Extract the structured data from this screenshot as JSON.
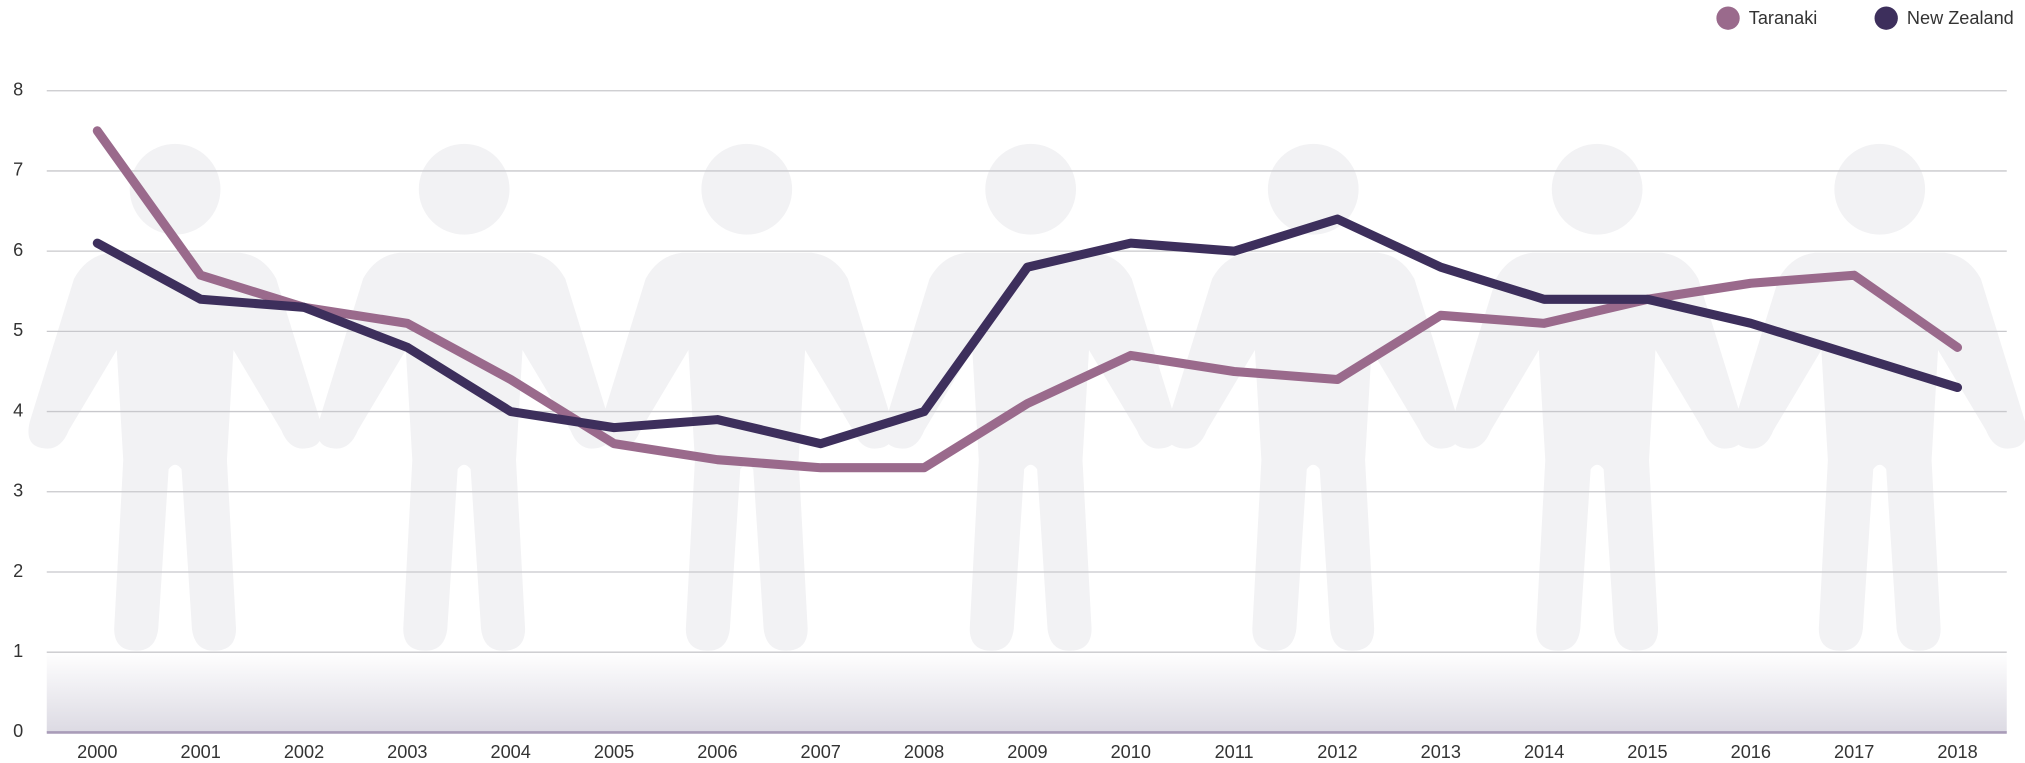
{
  "chart_data": {
    "type": "line",
    "categories": [
      "2000",
      "2001",
      "2002",
      "2003",
      "2004",
      "2005",
      "2006",
      "2007",
      "2008",
      "2009",
      "2010",
      "2011",
      "2012",
      "2013",
      "2014",
      "2015",
      "2016",
      "2017",
      "2018"
    ],
    "series": [
      {
        "name": "Taranaki",
        "color": "#9a6a8c",
        "values": [
          7.5,
          5.7,
          5.3,
          5.1,
          4.4,
          3.6,
          3.4,
          3.3,
          3.3,
          4.1,
          4.7,
          4.5,
          4.4,
          5.2,
          5.1,
          5.4,
          5.6,
          5.7,
          4.8
        ]
      },
      {
        "name": "New Zealand",
        "color": "#3d2f5c",
        "values": [
          6.1,
          5.4,
          5.3,
          4.8,
          4.0,
          3.8,
          3.9,
          3.6,
          4.0,
          5.8,
          6.1,
          6.0,
          6.4,
          5.8,
          5.4,
          5.4,
          5.1,
          4.7,
          4.3
        ]
      }
    ],
    "ylim": [
      0,
      8
    ],
    "yticks": [
      0,
      1,
      2,
      3,
      4,
      5,
      6,
      7,
      8
    ],
    "grid": true,
    "legend": "top-right"
  }
}
